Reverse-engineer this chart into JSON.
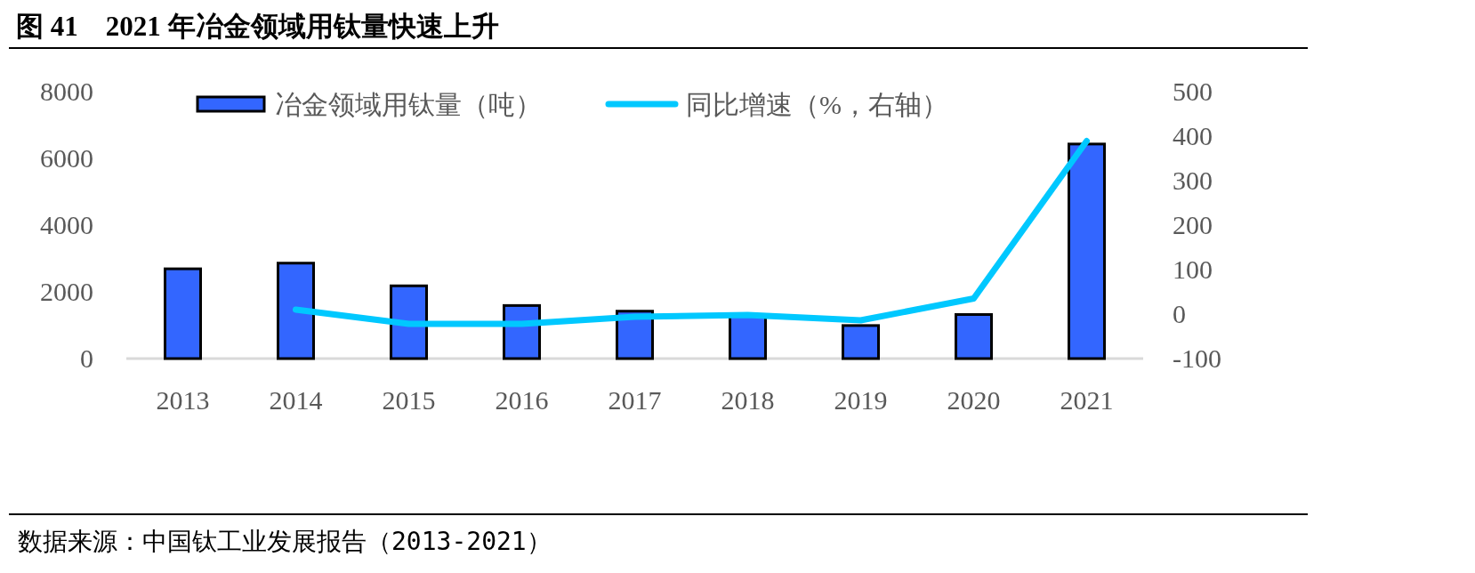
{
  "chart_data": {
    "type": "bar",
    "title": "图 41　2021 年冶金领域用钛量快速上升",
    "categories": [
      "2013",
      "2014",
      "2015",
      "2016",
      "2017",
      "2018",
      "2019",
      "2020",
      "2021"
    ],
    "series": [
      {
        "name": "冶金领域用钛量（吨）",
        "color": "#3366ff",
        "values": [
          2690,
          2860,
          2180,
          1590,
          1420,
          1320,
          990,
          1320,
          6430
        ]
      },
      {
        "name": "同比增速（%，右轴）",
        "type": "line",
        "axis": "y2",
        "color": "#00c8ff",
        "values": [
          null,
          10,
          -22,
          -22,
          -6,
          -2,
          -14,
          35,
          389
        ]
      }
    ],
    "ylim": [
      0,
      8000
    ],
    "yticks": [
      0,
      2000,
      4000,
      6000,
      8000
    ],
    "y2lim": [
      -100,
      500
    ],
    "y2ticks": [
      -100,
      0,
      100,
      200,
      300,
      400,
      500
    ],
    "legend": "top",
    "annotations": [
      "数据来源：中国钛工业发展报告（2013-2021）"
    ]
  }
}
